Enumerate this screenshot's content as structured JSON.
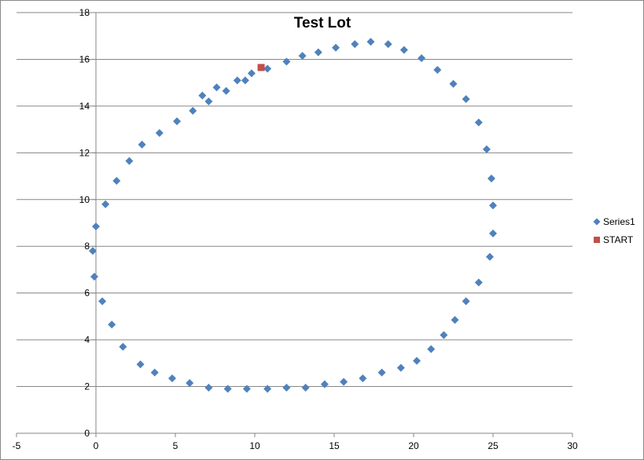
{
  "chart_data": {
    "type": "scatter",
    "title": "Test Lot",
    "xlabel": "",
    "ylabel": "",
    "xlim": [
      -5,
      30
    ],
    "ylim": [
      0,
      18
    ],
    "x_ticks": [
      -5,
      0,
      5,
      10,
      15,
      20,
      25,
      30
    ],
    "y_ticks": [
      0,
      2,
      4,
      6,
      8,
      10,
      12,
      14,
      16,
      18
    ],
    "x_tick_labels": [
      "-5",
      "0",
      "5",
      "10",
      "15",
      "20",
      "25",
      "30"
    ],
    "y_tick_labels": [
      "0",
      "2",
      "4",
      "6",
      "8",
      "10",
      "12",
      "14",
      "16",
      "18"
    ],
    "grid": "horizontal major gridlines",
    "legend_position": "right",
    "series": [
      {
        "name": "Series1",
        "marker": "diamond",
        "color": "#4F81BD",
        "points": [
          [
            10.8,
            15.6
          ],
          [
            12.0,
            15.9
          ],
          [
            13.0,
            16.15
          ],
          [
            14.0,
            16.3
          ],
          [
            15.1,
            16.5
          ],
          [
            16.3,
            16.65
          ],
          [
            17.3,
            16.75
          ],
          [
            18.4,
            16.65
          ],
          [
            19.4,
            16.4
          ],
          [
            20.5,
            16.05
          ],
          [
            21.5,
            15.55
          ],
          [
            22.5,
            14.95
          ],
          [
            23.3,
            14.3
          ],
          [
            24.1,
            13.3
          ],
          [
            24.6,
            12.15
          ],
          [
            24.9,
            10.9
          ],
          [
            25.0,
            9.75
          ],
          [
            25.0,
            8.55
          ],
          [
            24.8,
            7.55
          ],
          [
            24.1,
            6.45
          ],
          [
            23.3,
            5.65
          ],
          [
            22.6,
            4.85
          ],
          [
            21.9,
            4.2
          ],
          [
            21.1,
            3.6
          ],
          [
            20.2,
            3.1
          ],
          [
            19.2,
            2.8
          ],
          [
            18.0,
            2.6
          ],
          [
            16.8,
            2.35
          ],
          [
            15.6,
            2.2
          ],
          [
            14.4,
            2.1
          ],
          [
            13.2,
            1.95
          ],
          [
            12.0,
            1.95
          ],
          [
            10.8,
            1.9
          ],
          [
            9.5,
            1.9
          ],
          [
            8.3,
            1.9
          ],
          [
            7.1,
            1.95
          ],
          [
            5.9,
            2.15
          ],
          [
            4.8,
            2.35
          ],
          [
            3.7,
            2.6
          ],
          [
            2.8,
            2.95
          ],
          [
            1.7,
            3.7
          ],
          [
            1.0,
            4.65
          ],
          [
            0.4,
            5.65
          ],
          [
            -0.1,
            6.7
          ],
          [
            -0.2,
            7.8
          ],
          [
            0.0,
            8.85
          ],
          [
            0.6,
            9.8
          ],
          [
            1.3,
            10.8
          ],
          [
            2.1,
            11.65
          ],
          [
            2.9,
            12.35
          ],
          [
            4.0,
            12.85
          ],
          [
            5.1,
            13.35
          ],
          [
            6.1,
            13.8
          ],
          [
            7.1,
            14.2
          ],
          [
            8.2,
            14.65
          ],
          [
            6.7,
            14.45
          ],
          [
            7.6,
            14.8
          ],
          [
            8.9,
            15.1
          ],
          [
            9.4,
            15.1
          ],
          [
            9.8,
            15.4
          ]
        ]
      },
      {
        "name": "START",
        "marker": "square",
        "color": "#C0504D",
        "points": [
          [
            10.4,
            15.65
          ]
        ]
      }
    ]
  }
}
